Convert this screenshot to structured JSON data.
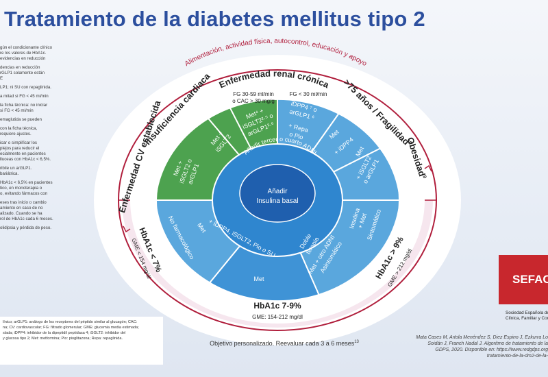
{
  "title": "Tratamiento de la diabetes mellitus tipo 2",
  "left_notes": [
    "gún el condicionante clínico\nre los valores de HbA1c.\n evidencias en reducción",
    "dencias en reducción\nrGLP1 solamente están\nE",
    "LP1; ni SU con repaglinida.",
    "a mitad si FG < 45 ml/min",
    " la ficha técnica: no iniciar\nsi FG < 45 ml/min",
    "emaglutida se pueden",
    " con la ficha técnica,\nrequiere ajustes.",
    "icar o simplificar los\nplejos para reducir el\necialmente en pacientes\nlluceas con HbA1c < 6,5%.",
    "ribile un arGLP1.\n bariátrica.",
    "HbA1c < 6,5% en pacientes\ntico, en monoterapia o\no, evitando fármacos con",
    "eses tras inicio o cambio\namiento en caso de no\nalizado. Cuando se ha\nrol de HbA1c cada 6 meses.",
    "olidipsia y pérdida de peso."
  ],
  "bottom_left": [
    "línico; arGLP1: análogo de los receptores del péptido similar al glucagón; CAC:",
    "na; CV: cardiovascular; FG: filtrado glomerular; GME: glucemia media estimada;",
    "slada; iDPP4: inhibidor de la dipeptidil peptidasa 4; iSGLT2: inhibidor del",
    " y glucosa tipo 2; Met: metformina; Pio: pioglitazona; Repa: repaglinida."
  ],
  "outer_arc": "Alimentación, actividad física, autocontrol, educación y apoyo",
  "erc_title": "Enfermedad renal crónica",
  "sectors": {
    "cv": "Enfermedad CV establecida",
    "ic": "Insuficiencia cardiaca",
    "fragilidad": ">75 años / Fragilidad",
    "fragilidad_sup": "8",
    "obesidad": "Obesidad",
    "obesidad_sup": "9",
    "hba1c_low": "HbA1c < 7%",
    "hba1c_low_sup": "10",
    "hba1c_low_gme": "GME < 154 mg/dl",
    "hba1c_mid": "HbA1c 7-9%",
    "hba1c_mid_gme": "GME: 154-212 mg/dl",
    "hba1c_high": "HbA1c > 9%",
    "hba1c_high_gme": "GME > 212 mg/dl"
  },
  "fg_labels": {
    "fg1": "FG 30-59 ml/min",
    "fg1b": "o CAC > 30 mg/g",
    "fg2": "FG < 30 ml/min"
  },
  "cells": {
    "cv_met": "Met +",
    "cv_isglt2": "iSGLT2 o",
    "cv_arglp1": "arGLP1",
    "cv_sup": "1",
    "ic_met": "Met +",
    "ic_isglt2": "iSGLT2",
    "ic_sup": "3",
    "fg1_met": "Met⁴ +",
    "fg1_isglt2": "iSGLT2²·⁵ o",
    "fg1_arglp1": "arGLP1²·⁶",
    "fg2_idpp4": "iDPP4 ⁷ o",
    "fg2_arglp1": "arGLP1 ⁶",
    "fg2_repa": "+ Repa",
    "fg2_pio": "o Pio",
    "frag_met": "Met",
    "frag_idpp4": "+ iDPP4",
    "ob_met": "Met",
    "ob_isglt2": "+ iSGLT2",
    "ob_arglp1": "o arGLP1",
    "nf_label": "No farmacológico",
    "nf_sup": "11",
    "low_met": "Met",
    "mid_combo": "+ iDPP4, iSGLT2, Pio o SU",
    "mid_sup": "12",
    "mid_met": "Met",
    "mid_met_sup": "11",
    "doble": "Doble",
    "terapia": "terapia",
    "terapia_sup": "11",
    "met_otro": "Met + otro ADNI",
    "asintomatico": "Asintomático",
    "insulina": "Insulina",
    "plus_met": "+ Met",
    "sintomatico": "Sintomático",
    "sintomatico_sup": "13"
  },
  "center_ring": "Añadir tercer o cuarto ADNI",
  "center_ring_sup": "3",
  "center_1": "Añadir",
  "center_2": "Insulina basal",
  "objective": "Objetivo personalizado. Reevaluar cada 3 a 6 meses",
  "objective_sup": "13",
  "logo": "SEFAC",
  "society": [
    "Sociedad Española de",
    "Clínica, Familiar y Cor"
  ],
  "citation": [
    "Mata Cases M, Artola Menéndez S, Diez Espino J, Ezkurra Lo",
    "Soidán J, Franch Nadal J. Algoritmo de tratamiento de la",
    "GDPS, 2020. Disponible en: https://www.redgdps.org",
    "tratamiento-de-la-dm2-de-la-"
  ],
  "colors": {
    "title": "#2c4f9e",
    "green": "#4da24f",
    "blue_light": "#5aa7dd",
    "blue_mid": "#2f86cf",
    "blue_dark": "#1f5fae",
    "maroon": "#b01e3c",
    "logo": "#c8272d"
  }
}
